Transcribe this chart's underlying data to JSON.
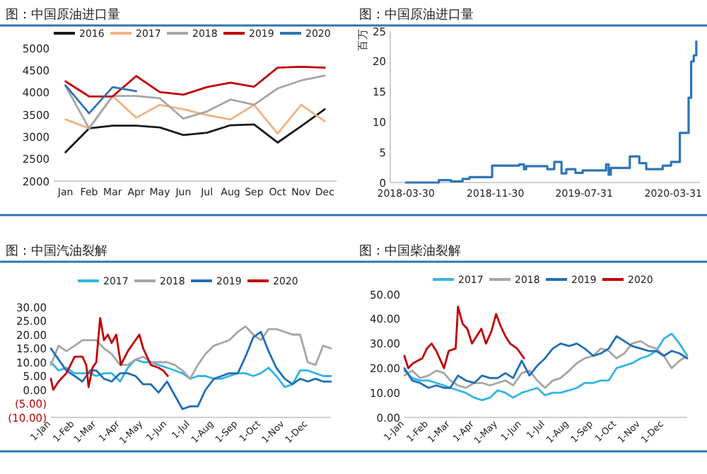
{
  "chart_data": [
    {
      "type": "line",
      "title": "图：中国原油进口量",
      "categories": [
        "Jan",
        "Feb",
        "Mar",
        "Apr",
        "May",
        "Jun",
        "Jul",
        "Aug",
        "Sep",
        "Oct",
        "Nov",
        "Dec"
      ],
      "ylim": [
        2000,
        5000
      ],
      "yticks": [
        2000,
        2500,
        3000,
        3500,
        4000,
        4500,
        5000
      ],
      "legend": "top",
      "grid": false,
      "series": [
        {
          "name": "2016",
          "color": "#1a1a1a",
          "values": [
            2650,
            3190,
            3250,
            3250,
            3210,
            3040,
            3090,
            3260,
            3280,
            2870,
            3240,
            3620
          ]
        },
        {
          "name": "2017",
          "color": "#f4b183",
          "values": [
            3390,
            3190,
            3920,
            3430,
            3720,
            3620,
            3490,
            3390,
            3720,
            3070,
            3720,
            3350
          ]
        },
        {
          "name": "2018",
          "color": "#a6a6a6",
          "values": [
            4150,
            3190,
            3920,
            3920,
            3870,
            3410,
            3570,
            3840,
            3720,
            4090,
            4270,
            4380
          ]
        },
        {
          "name": "2019",
          "color": "#c00000",
          "values": [
            4250,
            3910,
            3910,
            4370,
            4010,
            3950,
            4120,
            4220,
            4130,
            4560,
            4580,
            4560
          ]
        },
        {
          "name": "2020",
          "color": "#2e75b6",
          "values": [
            4160,
            3530,
            4120,
            4030,
            null,
            null,
            null,
            null,
            null,
            null,
            null,
            null
          ]
        }
      ]
    },
    {
      "type": "step",
      "title": "图：中国原油进口量",
      "ylabel": "百万",
      "xlim": [
        "2018-02-15",
        "2020-06-12"
      ],
      "xticks": [
        "2018-03-30",
        "2018-11-30",
        "2019-07-31",
        "2020-03-31"
      ],
      "ylim": [
        0,
        25
      ],
      "yticks": [
        0,
        5,
        10,
        15,
        20,
        25
      ],
      "grid": false,
      "series": [
        {
          "color": "#2e75b6",
          "x": [
            "2018-03-30",
            "2018-06-28",
            "2018-07-31",
            "2018-09-01",
            "2018-09-20",
            "2018-11-21",
            "2019-02-03",
            "2019-02-16",
            "2019-02-22",
            "2019-04-21",
            "2019-05-10",
            "2019-05-30",
            "2019-06-12",
            "2019-07-07",
            "2019-07-27",
            "2019-09-29",
            "2019-10-06",
            "2019-10-12",
            "2019-12-03",
            "2019-12-29",
            "2020-01-17",
            "2020-03-02",
            "2020-03-25",
            "2020-04-18",
            "2020-05-12",
            "2020-05-19",
            "2020-05-26",
            "2020-06-02"
          ],
          "values": [
            0,
            0.4,
            0.2,
            0.6,
            0.9,
            2.8,
            3.0,
            2.2,
            2.7,
            2.2,
            3.4,
            1.5,
            2.2,
            1.6,
            2.0,
            3.0,
            1.3,
            2.4,
            4.3,
            3.2,
            2.2,
            2.8,
            3.4,
            8.2,
            14,
            20,
            21,
            23.3
          ]
        }
      ]
    },
    {
      "type": "line",
      "title": "图：中国汽油裂解",
      "xlim": [
        "--01-01",
        "--12-31"
      ],
      "xticks": [
        {
          "value": "--01-01",
          "label": "1-Jan"
        },
        {
          "value": "--02-01",
          "label": "1-Feb"
        },
        {
          "value": "--03-01",
          "label": "1-Mar"
        },
        {
          "value": "--04-01",
          "label": "1-Apr"
        },
        {
          "value": "--05-01",
          "label": "1-May"
        },
        {
          "value": "--06-01",
          "label": "1-Jun"
        },
        {
          "value": "--07-01",
          "label": "1-Jul"
        },
        {
          "value": "--08-01",
          "label": "1-Aug"
        },
        {
          "value": "--09-01",
          "label": "1-Sep"
        },
        {
          "value": "--10-01",
          "label": "1-Oct"
        },
        {
          "value": "--11-01",
          "label": "1-Nov"
        },
        {
          "value": "--12-01",
          "label": "1-Dec"
        }
      ],
      "ylim": [
        -10,
        30
      ],
      "yticks": [
        {
          "value": -10,
          "label": "(10.00)"
        },
        {
          "value": -5,
          "label": "(5.00)"
        },
        {
          "value": 0,
          "label": "0.00"
        },
        {
          "value": 5,
          "label": "5.00"
        },
        {
          "value": 10,
          "label": "10.00"
        },
        {
          "value": 15,
          "label": "15.00"
        },
        {
          "value": 20,
          "label": "20.00"
        },
        {
          "value": 25,
          "label": "25.00"
        },
        {
          "value": 30,
          "label": "30.00"
        }
      ],
      "legend": "top",
      "grid": false,
      "x": [
        "--01-01",
        "--01-11",
        "--01-21",
        "--02-01",
        "--02-11",
        "--02-21",
        "--03-01",
        "--03-11",
        "--03-21",
        "--04-01",
        "--04-11",
        "--04-21",
        "--05-01",
        "--05-11",
        "--05-21",
        "--06-01",
        "--06-11",
        "--06-21",
        "--07-01",
        "--07-11",
        "--07-21",
        "--08-01",
        "--08-11",
        "--08-21",
        "--09-01",
        "--09-11",
        "--09-21",
        "--10-01",
        "--10-11",
        "--10-21",
        "--11-01",
        "--11-11",
        "--11-21",
        "--12-01",
        "--12-11",
        "--12-21",
        "--12-31"
      ],
      "series": [
        {
          "name": "2017",
          "color": "#33b5e5",
          "values": [
            10,
            7,
            8,
            6,
            6,
            6,
            5,
            6,
            6,
            3,
            8,
            11,
            10,
            10,
            9,
            8,
            7,
            6,
            4,
            5,
            5,
            4,
            4,
            5,
            6,
            6,
            5,
            6,
            8,
            5,
            1,
            2,
            7,
            7,
            6,
            5,
            5
          ]
        },
        {
          "name": "2018",
          "color": "#a6a6a6",
          "values": [
            9,
            16,
            14,
            16,
            18,
            18,
            18,
            15,
            13,
            9,
            9,
            11,
            12,
            10,
            10,
            10,
            9,
            7,
            4,
            9,
            13,
            16,
            17,
            18,
            21,
            23,
            20,
            18,
            22,
            22,
            21,
            20,
            20,
            10,
            9,
            16,
            15
          ]
        },
        {
          "name": "2019",
          "color": "#1f6fb8",
          "values": [
            15,
            11,
            7,
            5,
            3,
            7,
            7,
            4,
            3,
            6,
            6,
            5,
            2,
            2,
            -1,
            3,
            -2,
            -7,
            -6,
            -6,
            0,
            4,
            5,
            6,
            6,
            12,
            19,
            21,
            14,
            8,
            4,
            2,
            4,
            3,
            4,
            3,
            3
          ]
        },
        {
          "name": "2020",
          "color": "#c00000",
          "x": [
            "--01-01",
            "--01-04",
            "--01-11",
            "--01-21",
            "--02-01",
            "--02-11",
            "--02-16",
            "--02-19",
            "--02-24",
            "--03-01",
            "--03-06",
            "--03-11",
            "--03-16",
            "--03-21",
            "--03-27",
            "--04-02",
            "--04-11",
            "--04-21",
            "--04-26",
            "--05-01",
            "--05-11",
            "--05-21",
            "--05-27",
            "--06-02"
          ],
          "values": [
            4,
            0,
            3,
            6,
            12,
            12,
            9,
            1,
            8,
            10,
            26,
            18,
            20,
            17,
            20,
            9,
            14,
            18,
            20,
            15,
            9,
            8,
            7,
            5
          ]
        }
      ]
    },
    {
      "type": "line",
      "title": "图：中国柴油裂解",
      "xlim": [
        "--01-01",
        "--12-31"
      ],
      "xticks": [
        {
          "value": "--01-01",
          "label": "1-Jan"
        },
        {
          "value": "--02-01",
          "label": "1-Feb"
        },
        {
          "value": "--03-01",
          "label": "1-Mar"
        },
        {
          "value": "--04-01",
          "label": "1-Apr"
        },
        {
          "value": "--05-01",
          "label": "1-May"
        },
        {
          "value": "--06-01",
          "label": "1-Jun"
        },
        {
          "value": "--07-01",
          "label": "1-Jul"
        },
        {
          "value": "--08-01",
          "label": "1-Aug"
        },
        {
          "value": "--09-01",
          "label": "1-Sep"
        },
        {
          "value": "--10-01",
          "label": "1-Oct"
        },
        {
          "value": "--11-01",
          "label": "1-Nov"
        },
        {
          "value": "--12-01",
          "label": "1-Dec"
        }
      ],
      "ylim": [
        0,
        50
      ],
      "yticks": [
        {
          "value": 0,
          "label": "0.00"
        },
        {
          "value": 10,
          "label": "10.00"
        },
        {
          "value": 20,
          "label": "20.00"
        },
        {
          "value": 30,
          "label": "30.00"
        },
        {
          "value": 40,
          "label": "40.00"
        },
        {
          "value": 50,
          "label": "50.00"
        }
      ],
      "legend": "top",
      "grid": false,
      "x": [
        "--01-01",
        "--01-11",
        "--01-21",
        "--02-01",
        "--02-11",
        "--02-21",
        "--03-01",
        "--03-11",
        "--03-21",
        "--04-01",
        "--04-11",
        "--04-21",
        "--05-01",
        "--05-11",
        "--05-21",
        "--06-01",
        "--06-11",
        "--06-21",
        "--07-01",
        "--07-11",
        "--07-21",
        "--08-01",
        "--08-11",
        "--08-21",
        "--09-01",
        "--09-11",
        "--09-21",
        "--10-01",
        "--10-11",
        "--10-21",
        "--11-01",
        "--11-11",
        "--11-21",
        "--12-01",
        "--12-11",
        "--12-21",
        "--12-31"
      ],
      "series": [
        {
          "name": "2017",
          "color": "#33b5e5",
          "values": [
            19,
            16,
            15,
            15,
            14,
            13,
            12,
            11,
            10,
            8,
            7,
            8,
            11,
            10,
            8,
            10,
            11,
            12,
            9,
            10,
            10,
            11,
            12,
            14,
            14,
            15,
            15,
            20,
            21,
            22,
            24,
            25,
            27,
            32,
            34,
            30,
            25
          ]
        },
        {
          "name": "2018",
          "color": "#a6a6a6",
          "values": [
            17,
            19,
            16,
            17,
            19,
            18,
            15,
            13,
            12,
            14,
            14,
            13,
            14,
            15,
            13,
            18,
            19,
            15,
            12,
            15,
            16,
            19,
            22,
            24,
            25,
            28,
            27,
            24,
            26,
            30,
            31,
            29,
            28,
            25,
            20,
            23,
            25
          ]
        },
        {
          "name": "2019",
          "color": "#1f6fb8",
          "values": [
            20,
            15,
            14,
            12,
            13,
            12,
            12,
            17,
            15,
            14,
            17,
            16,
            16,
            18,
            16,
            23,
            17,
            21,
            24,
            28,
            30,
            29,
            30,
            28,
            25,
            26,
            28,
            33,
            31,
            29,
            28,
            27,
            27,
            25,
            27,
            26,
            24
          ]
        },
        {
          "name": "2020",
          "color": "#c00000",
          "x": [
            "--01-01",
            "--01-06",
            "--01-12",
            "--01-24",
            "--01-30",
            "--02-05",
            "--02-11",
            "--02-21",
            "--02-27",
            "--03-08",
            "--03-11",
            "--03-17",
            "--03-23",
            "--03-29",
            "--04-04",
            "--04-10",
            "--04-16",
            "--04-23",
            "--04-29",
            "--05-05",
            "--05-11",
            "--05-17",
            "--05-26",
            "--06-04"
          ],
          "values": [
            25,
            20,
            22,
            24,
            28,
            30,
            27,
            20,
            27,
            28,
            45,
            38,
            36,
            30,
            33,
            36,
            30,
            35,
            42,
            37,
            33,
            30,
            28,
            24
          ]
        }
      ]
    }
  ]
}
